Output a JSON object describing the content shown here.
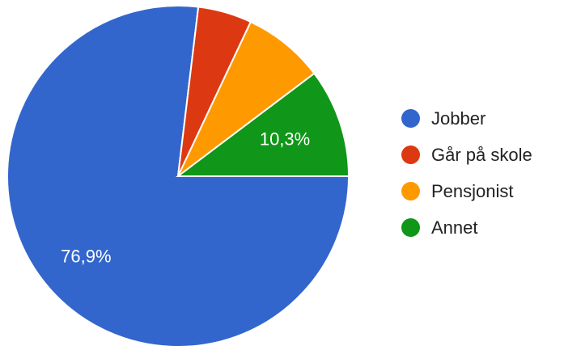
{
  "chart_data": {
    "type": "pie",
    "title": "",
    "legend_position": "right",
    "slices": [
      {
        "label": "Jobber",
        "value": 76.9,
        "value_label": "76,9%",
        "color": "#3366cc"
      },
      {
        "label": "Går på skole",
        "value": 5.1,
        "value_label": "",
        "color": "#dc3912"
      },
      {
        "label": "Pensjonist",
        "value": 7.7,
        "value_label": "",
        "color": "#ff9900"
      },
      {
        "label": "Annet",
        "value": 10.3,
        "value_label": "10,3%",
        "color": "#109618"
      }
    ]
  }
}
